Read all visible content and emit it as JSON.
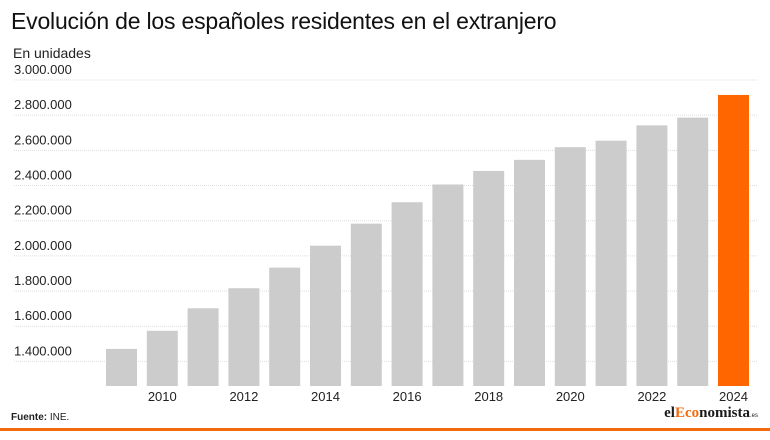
{
  "title": "Evolución de los españoles residentes en el extranjero",
  "subtitle": "En unidades",
  "source_label": "Fuente:",
  "source_value": " INE.",
  "logo": {
    "prefix": "el",
    "accent": "Eco",
    "rest": "nomista",
    "suffix": ".es"
  },
  "colors": {
    "bar": "#cccccc",
    "highlight": "#ff6600",
    "grid": "#dddddd",
    "brand": "#f26a0f"
  },
  "chart_data": {
    "type": "bar",
    "categories": [
      "2009",
      "2010",
      "2011",
      "2012",
      "2013",
      "2014",
      "2015",
      "2016",
      "2017",
      "2018",
      "2019",
      "2020",
      "2021",
      "2022",
      "2023",
      "2024"
    ],
    "x_tick_labels": [
      "2010",
      "2012",
      "2014",
      "2016",
      "2018",
      "2020",
      "2022",
      "2024"
    ],
    "values": [
      1471000,
      1574000,
      1702000,
      1816000,
      1933000,
      2058000,
      2183000,
      2305000,
      2406000,
      2483000,
      2546000,
      2618000,
      2655000,
      2742000,
      2786000,
      2915000
    ],
    "highlight_category": "2024",
    "ylim": [
      1260000,
      3000000
    ],
    "yticks": [
      1400000,
      1600000,
      1800000,
      2000000,
      2200000,
      2400000,
      2600000,
      2800000,
      3000000
    ],
    "ytick_labels": [
      "1.400.000",
      "1.600.000",
      "1.800.000",
      "2.000.000",
      "2.200.000",
      "2.400.000",
      "2.600.000",
      "2.800.000",
      "3.000.000"
    ],
    "title": "Evolución de los españoles residentes en el extranjero",
    "ylabel": "En unidades",
    "xlabel": "",
    "grid": true,
    "legend": "none"
  }
}
